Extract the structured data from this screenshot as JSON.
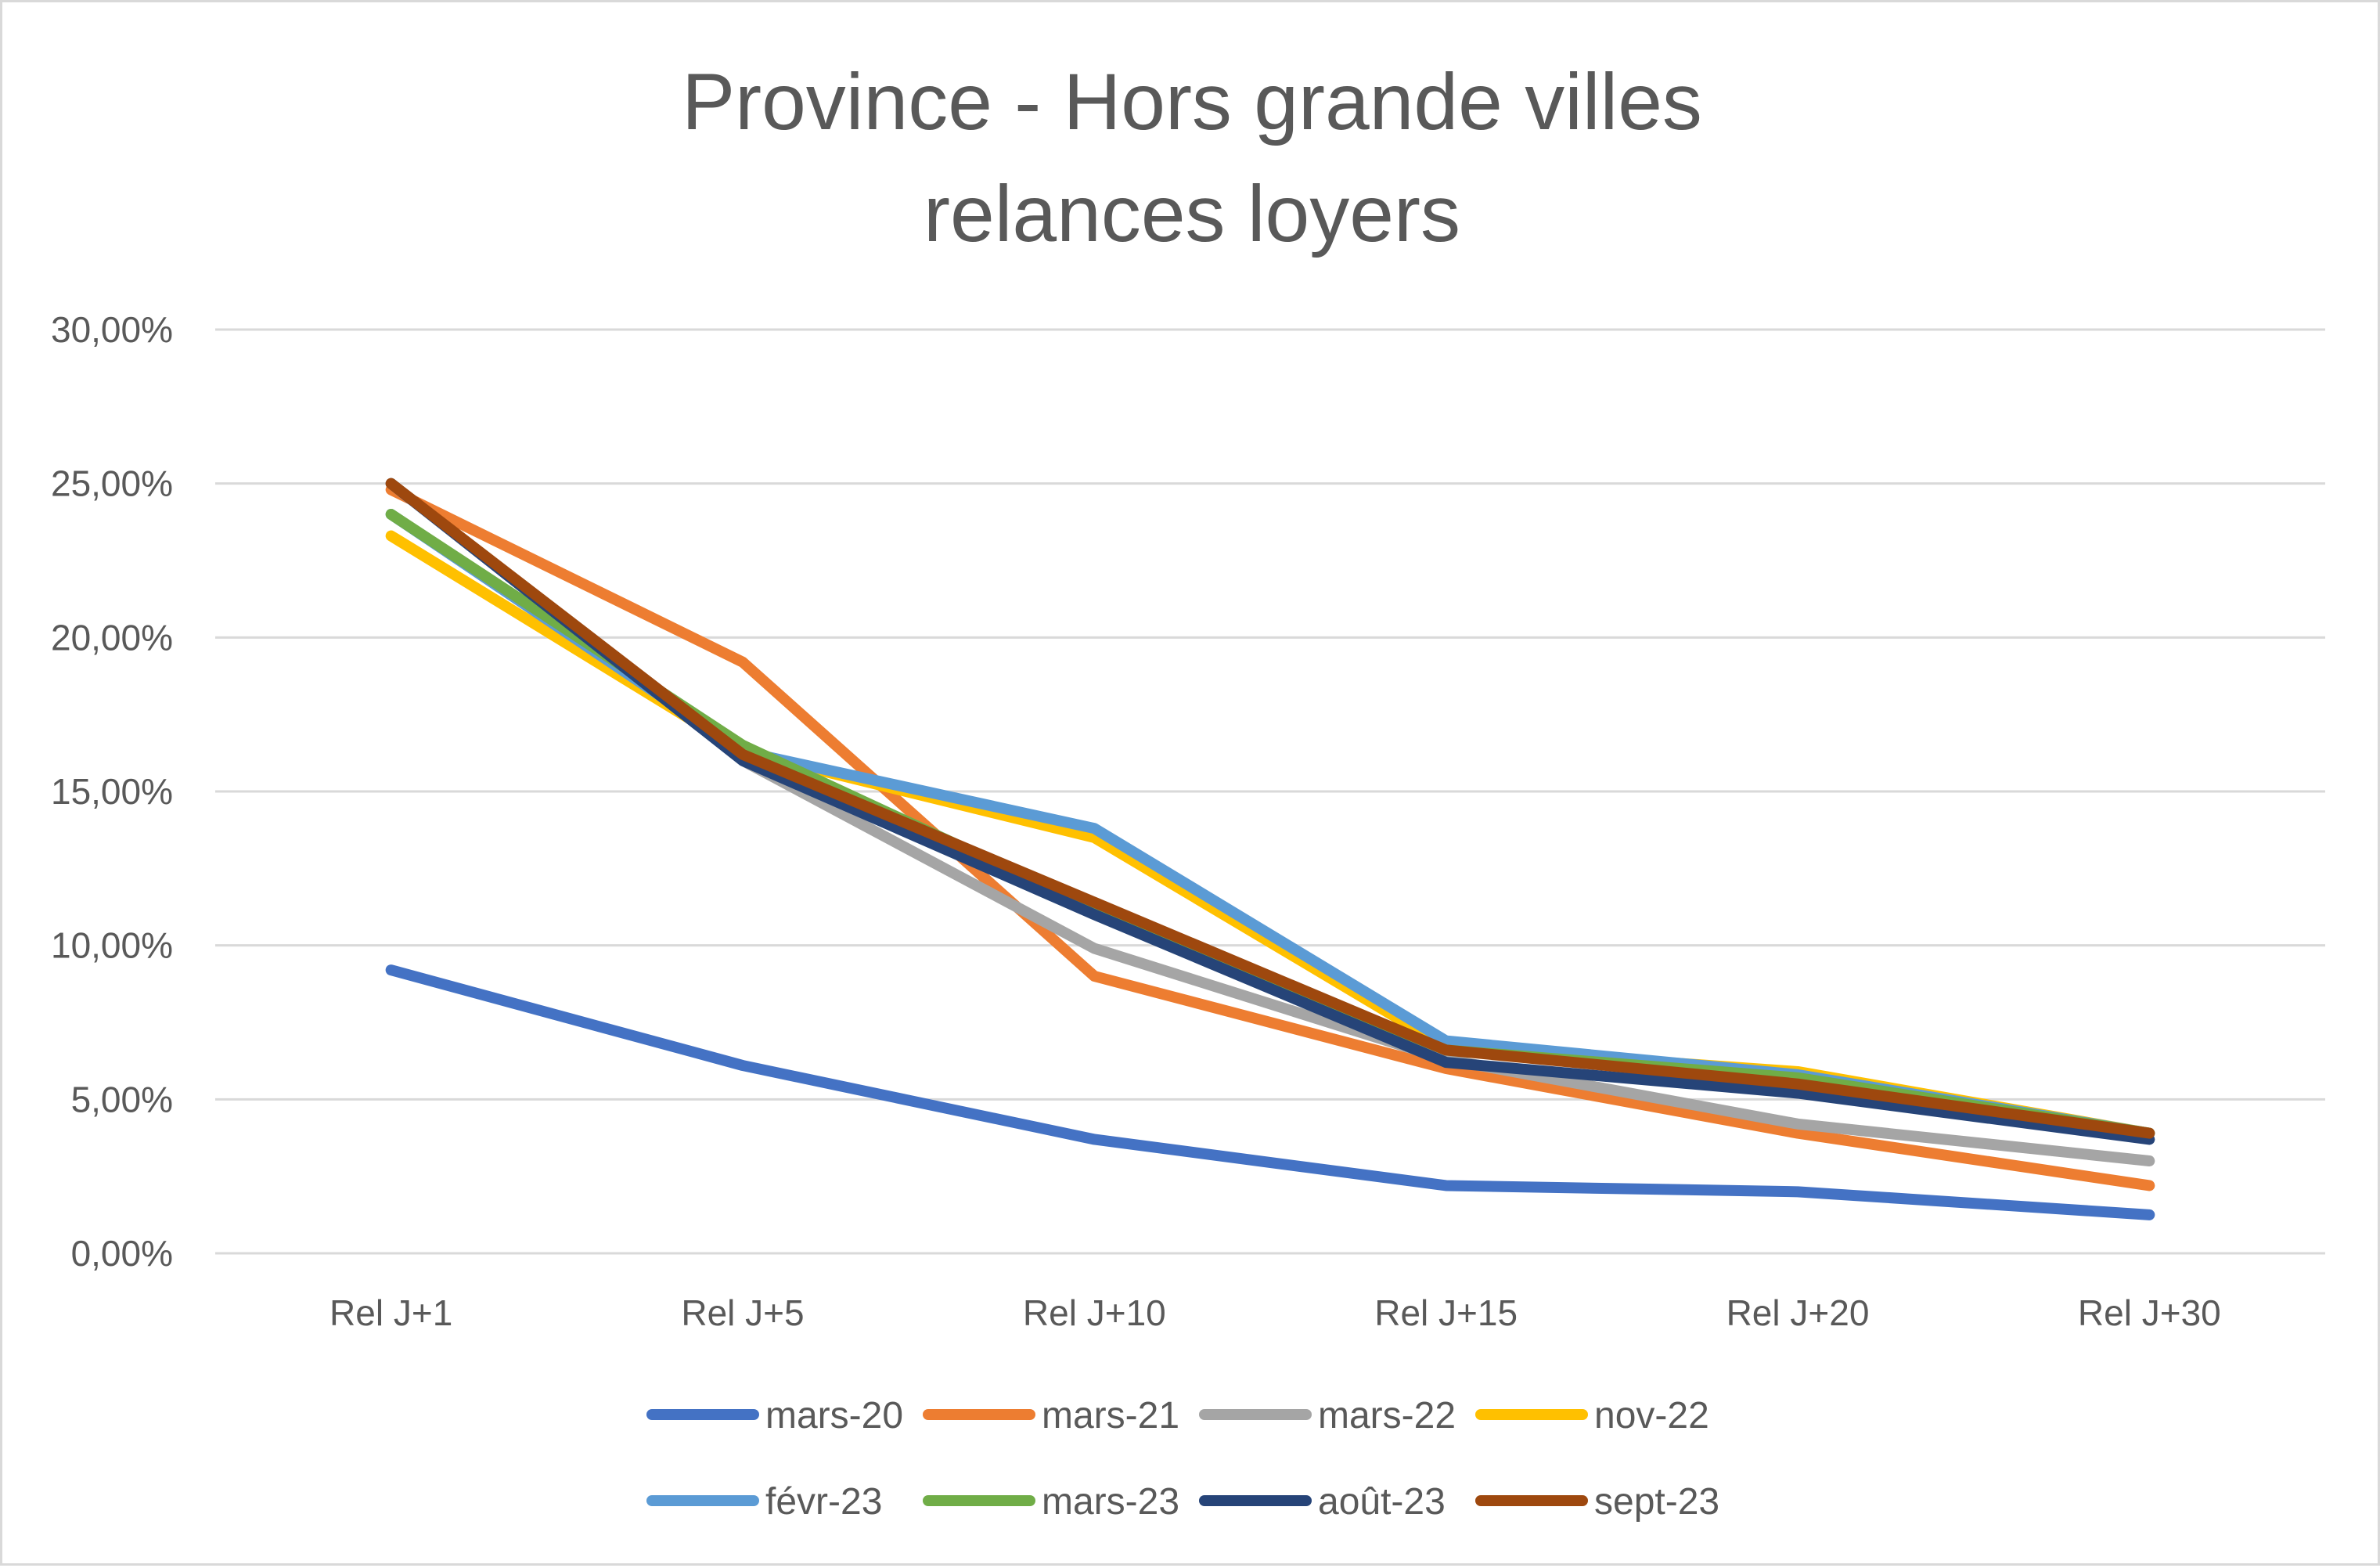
{
  "chart_data": {
    "type": "line",
    "title": [
      "Province - Hors grande villes",
      "relances loyers"
    ],
    "xlabel": "",
    "ylabel": "",
    "categories": [
      "Rel J+1",
      "Rel J+5",
      "Rel J+10",
      "Rel J+15",
      "Rel J+20",
      "Rel J+30"
    ],
    "ylim": [
      0,
      0.3
    ],
    "yticks": [
      0,
      0.05,
      0.1,
      0.15,
      0.2,
      0.25,
      0.3
    ],
    "ytick_labels": [
      "0,00%",
      "5,00%",
      "10,00%",
      "15,00%",
      "20,00%",
      "25,00%",
      "30,00%"
    ],
    "grid": true,
    "legend_position": "bottom",
    "series": [
      {
        "name": "mars-20",
        "color": "#4472C4",
        "values": [
          0.092,
          0.061,
          0.037,
          0.022,
          0.02,
          0.0125
        ]
      },
      {
        "name": "mars-21",
        "color": "#ED7D31",
        "values": [
          0.248,
          0.192,
          0.09,
          0.06,
          0.039,
          0.022
        ]
      },
      {
        "name": "mars-22",
        "color": "#A5A5A5",
        "values": [
          0.25,
          0.16,
          0.099,
          0.063,
          0.042,
          0.03
        ]
      },
      {
        "name": "nov-22",
        "color": "#FFC000",
        "values": [
          0.233,
          0.163,
          0.135,
          0.067,
          0.059,
          0.039
        ]
      },
      {
        "name": "févr-23",
        "color": "#5B9BD5",
        "values": [
          0.24,
          0.163,
          0.138,
          0.069,
          0.058,
          0.039
        ]
      },
      {
        "name": "mars-23",
        "color": "#70AD47",
        "values": [
          0.24,
          0.165,
          0.112,
          0.066,
          0.057,
          0.039
        ]
      },
      {
        "name": "août-23",
        "color": "#264478",
        "values": [
          0.25,
          0.16,
          0.11,
          0.062,
          0.052,
          0.037
        ]
      },
      {
        "name": "sept-23",
        "color": "#9E480E",
        "values": [
          0.25,
          0.162,
          0.114,
          0.066,
          0.055,
          0.039
        ]
      }
    ]
  }
}
